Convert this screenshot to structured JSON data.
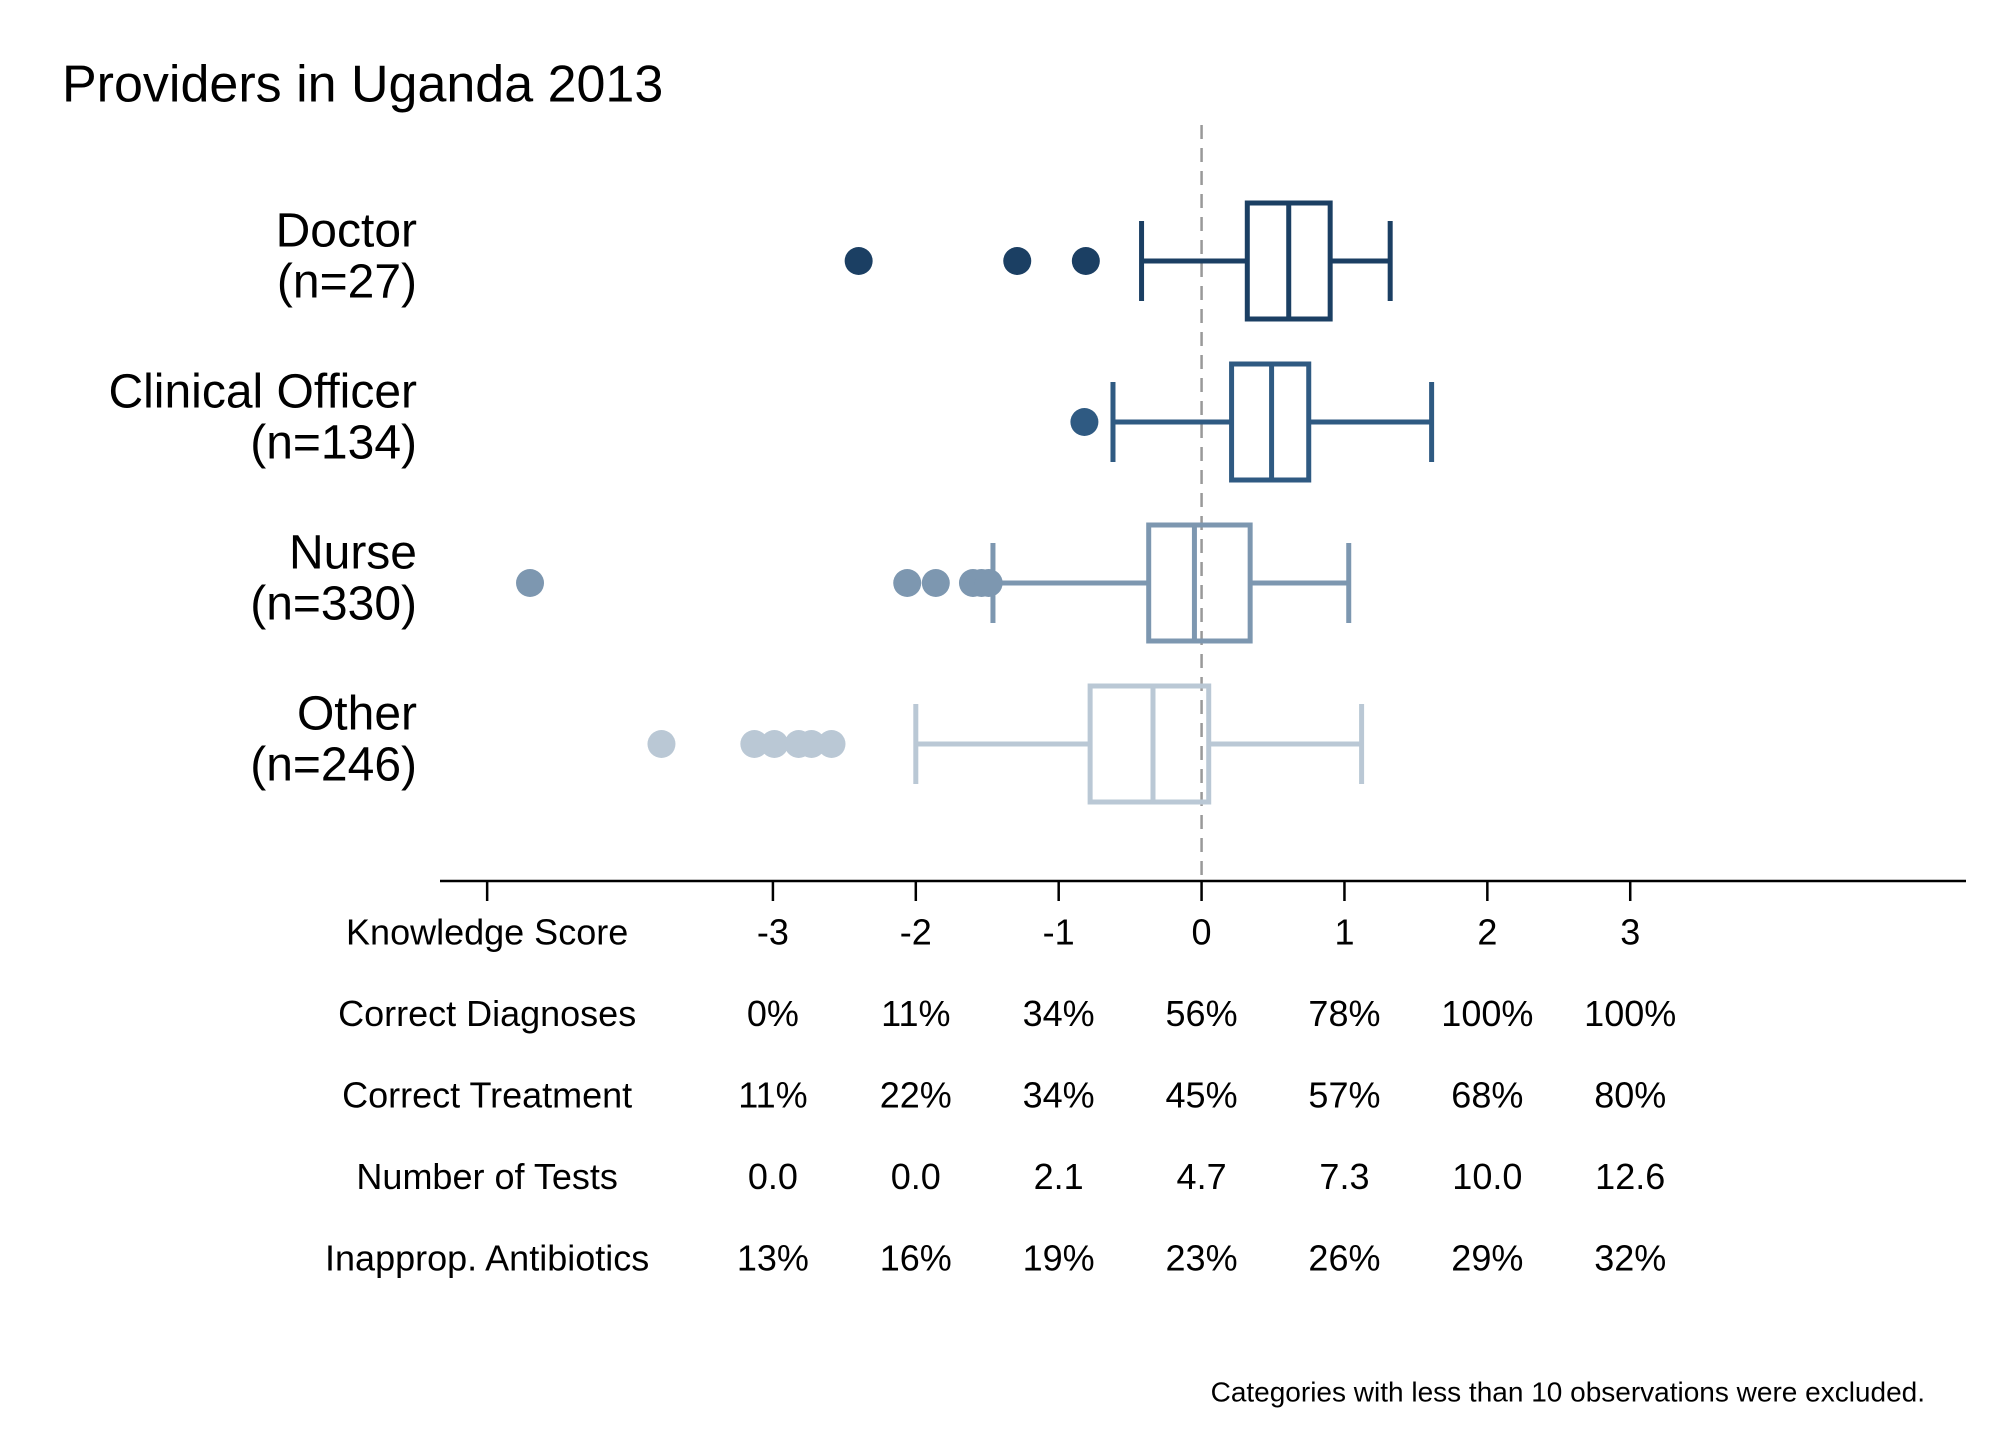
{
  "chart_data": {
    "type": "boxplot",
    "title": "Providers in Uganda 2013",
    "xlim": [
      -5.33,
      5.35
    ],
    "xticks": [
      {
        "value": -5,
        "label": "Knowledge Score"
      },
      -3,
      -2,
      -1,
      0,
      1,
      2,
      3
    ],
    "refline": 0,
    "series": [
      {
        "name": "Doctor",
        "n_label": "(n=27)",
        "color": "#1b3f63",
        "whisker_low": -0.42,
        "q1": 0.32,
        "median": 0.61,
        "q3": 0.9,
        "whisker_high": 1.32,
        "outliers": [
          -2.4,
          -1.29,
          -0.81
        ]
      },
      {
        "name": "Clinical Officer",
        "n_label": "(n=134)",
        "color": "#2f5a82",
        "whisker_low": -0.62,
        "q1": 0.21,
        "median": 0.49,
        "q3": 0.75,
        "whisker_high": 1.61,
        "outliers": [
          -0.82
        ]
      },
      {
        "name": "Nurse",
        "n_label": "(n=330)",
        "color": "#7d97b0",
        "whisker_low": -1.46,
        "q1": -0.37,
        "median": -0.05,
        "q3": 0.34,
        "whisker_high": 1.03,
        "outliers": [
          -4.7,
          -2.06,
          -1.86,
          -1.6,
          -1.54,
          -1.49
        ]
      },
      {
        "name": "Other",
        "n_label": "(n=246)",
        "color": "#bac8d5",
        "whisker_low": -2.0,
        "q1": -0.78,
        "median": -0.34,
        "q3": 0.05,
        "whisker_high": 1.12,
        "outliers": [
          -3.78,
          -3.13,
          -2.99,
          -2.82,
          -2.73,
          -2.59
        ]
      }
    ],
    "table_rows": [
      {
        "label": "Correct Diagnoses",
        "values": [
          "0%",
          "11%",
          "34%",
          "56%",
          "78%",
          "100%",
          "100%"
        ]
      },
      {
        "label": "Correct Treatment",
        "values": [
          "11%",
          "22%",
          "34%",
          "45%",
          "57%",
          "68%",
          "80%"
        ]
      },
      {
        "label": "Number of Tests",
        "values": [
          "0.0",
          "0.0",
          "2.1",
          "4.7",
          "7.3",
          "10.0",
          "12.6"
        ]
      },
      {
        "label": "Inapprop. Antibiotics",
        "values": [
          "13%",
          "16%",
          "19%",
          "23%",
          "26%",
          "29%",
          "32%"
        ]
      }
    ],
    "note": "Categories with less than 10 observations were excluded."
  }
}
